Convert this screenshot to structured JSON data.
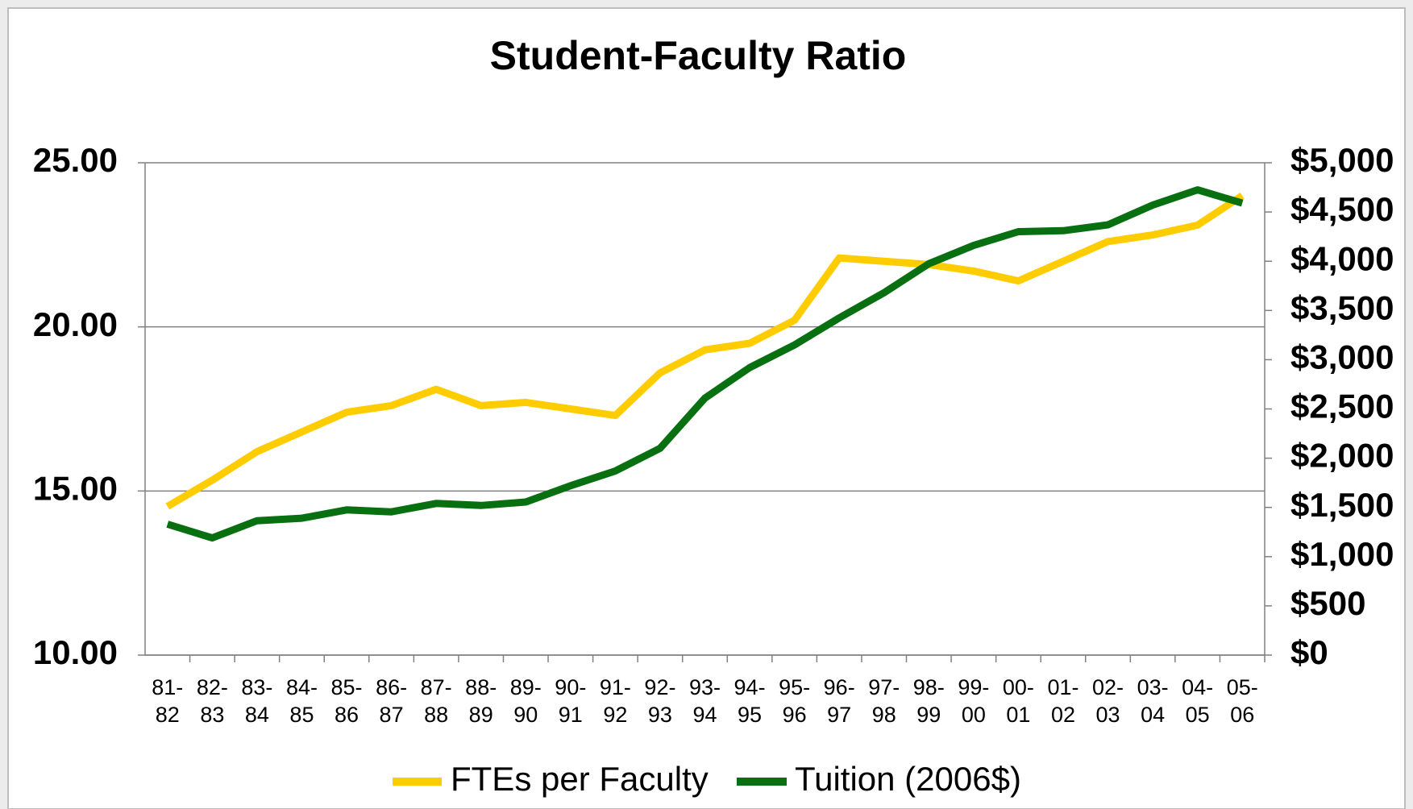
{
  "chart_data": {
    "type": "line",
    "title": "Student-Faculty Ratio",
    "categories": [
      "81-82",
      "82-83",
      "83-84",
      "84-85",
      "85-86",
      "86-87",
      "87-88",
      "88-89",
      "89-90",
      "90-91",
      "91-92",
      "92-93",
      "93-94",
      "94-95",
      "95-96",
      "96-97",
      "97-98",
      "98-99",
      "99-00",
      "00-01",
      "01-02",
      "02-03",
      "03-04",
      "04-05",
      "05-06"
    ],
    "series": [
      {
        "name": "FTEs per Faculty",
        "color": "#ffcc00",
        "values": [
          14.53,
          15.33,
          16.2,
          16.8,
          17.4,
          17.6,
          18.1,
          17.6,
          17.7,
          17.5,
          17.3,
          18.6,
          19.3,
          19.5,
          20.2,
          22.1,
          22.0,
          21.9,
          21.7,
          21.4,
          22.0,
          22.6,
          22.8,
          23.1,
          24.0
        ]
      },
      {
        "name": "Tuition (2006$)",
        "color": "#087010",
        "axis": "y2",
        "values": [
          1330,
          1190,
          1365,
          1390,
          1475,
          1455,
          1540,
          1520,
          1555,
          1720,
          1870,
          2100,
          2610,
          2920,
          3150,
          3425,
          3680,
          3975,
          4160,
          4300,
          4310,
          4370,
          4570,
          4725,
          4590
        ]
      }
    ],
    "ylim": [
      10,
      25
    ],
    "yticks": [
      {
        "value": 10,
        "label": "10.00"
      },
      {
        "value": 15,
        "label": "15.00"
      },
      {
        "value": 20,
        "label": "20.00"
      },
      {
        "value": 25,
        "label": "25.00"
      }
    ],
    "y2lim": [
      0,
      5000
    ],
    "y2ticks": [
      {
        "value": 0,
        "label": "$0"
      },
      {
        "value": 500,
        "label": "$500"
      },
      {
        "value": 1000,
        "label": "$1,000"
      },
      {
        "value": 1500,
        "label": "$1,500"
      },
      {
        "value": 2000,
        "label": "$2,000"
      },
      {
        "value": 2500,
        "label": "$2,500"
      },
      {
        "value": 3000,
        "label": "$3,000"
      },
      {
        "value": 3500,
        "label": "$3,500"
      },
      {
        "value": 4000,
        "label": "$4,000"
      },
      {
        "value": 4500,
        "label": "$4,500"
      },
      {
        "value": 5000,
        "label": "$5,000"
      }
    ],
    "grid": true,
    "legend": "bottom"
  }
}
